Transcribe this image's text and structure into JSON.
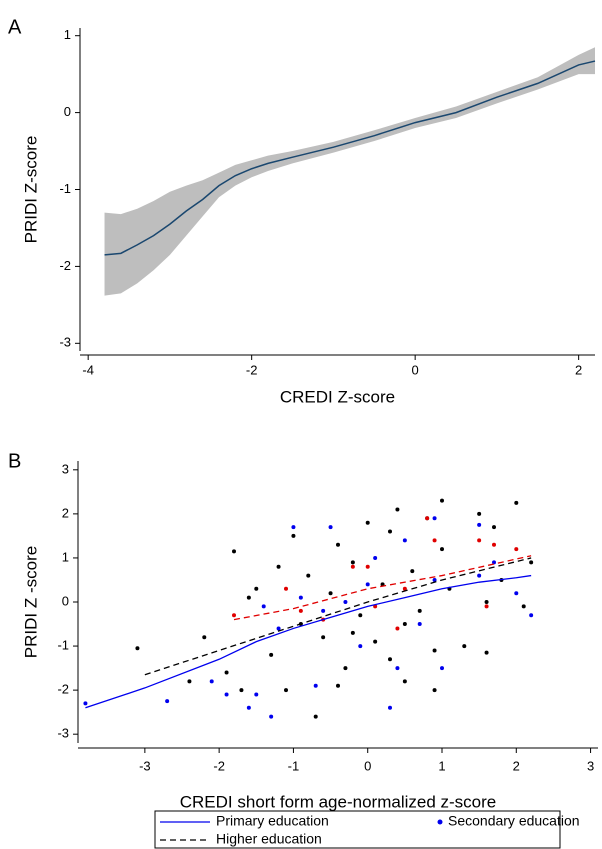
{
  "chart_data": [
    {
      "type": "line",
      "panel": "A",
      "xlabel": "CREDI Z-score",
      "ylabel": "PRIDI Z-score",
      "xlim": [
        -4.1,
        2.2
      ],
      "xticks": [
        -4,
        -2,
        0,
        2
      ],
      "ylim": [
        -3.1,
        1.1
      ],
      "yticks": [
        -3,
        -2,
        -1,
        0,
        1
      ],
      "band_color": "#bebebe",
      "x": [
        -3.8,
        -3.6,
        -3.4,
        -3.2,
        -3.0,
        -2.8,
        -2.6,
        -2.4,
        -2.2,
        -2.0,
        -1.8,
        -1.5,
        -1.0,
        -0.5,
        0,
        0.5,
        1.0,
        1.5,
        2.0,
        2.2
      ],
      "series": [
        {
          "color": "#1a476f",
          "values": [
            -1.85,
            -1.83,
            -1.72,
            -1.6,
            -1.45,
            -1.28,
            -1.13,
            -0.95,
            -0.82,
            -0.73,
            -0.66,
            -0.58,
            -0.45,
            -0.3,
            -0.13,
            0.0,
            0.2,
            0.38,
            0.62,
            0.67
          ],
          "lower": [
            -2.38,
            -2.35,
            -2.22,
            -2.05,
            -1.85,
            -1.6,
            -1.35,
            -1.1,
            -0.95,
            -0.84,
            -0.76,
            -0.66,
            -0.52,
            -0.37,
            -0.2,
            -0.07,
            0.12,
            0.3,
            0.5,
            0.5
          ],
          "upper": [
            -1.3,
            -1.32,
            -1.25,
            -1.15,
            -1.03,
            -0.95,
            -0.88,
            -0.78,
            -0.68,
            -0.62,
            -0.56,
            -0.5,
            -0.38,
            -0.23,
            -0.07,
            0.08,
            0.27,
            0.46,
            0.75,
            0.85
          ]
        }
      ]
    },
    {
      "type": "scatter",
      "panel": "B",
      "xlabel": "CREDI short form age-normalized z-score",
      "ylabel": "PRIDI Z -score",
      "xlim": [
        -3.9,
        3.1
      ],
      "xticks": [
        -3,
        -2,
        -1,
        0,
        1,
        2,
        3
      ],
      "ylim": [
        -3.2,
        3.2
      ],
      "yticks": [
        -3,
        -2,
        -1,
        0,
        1,
        2,
        3
      ],
      "series": [
        {
          "kind": "scatter",
          "color": "#000000",
          "x": [
            -3.1,
            -2.4,
            -2.2,
            -1.9,
            -1.8,
            -1.7,
            -1.5,
            -1.3,
            -1.2,
            -1.1,
            -1.0,
            -0.9,
            -0.8,
            -0.7,
            -0.6,
            -0.5,
            -0.4,
            -0.3,
            -0.2,
            -0.1,
            0,
            0.1,
            0.2,
            0.3,
            0.4,
            0.5,
            0.6,
            0.7,
            0.8,
            0.9,
            1.0,
            1.1,
            1.3,
            1.5,
            1.6,
            1.7,
            1.8,
            2.0,
            2.1,
            2.2,
            -0.4,
            0.3,
            0.9,
            -1.6,
            0.5,
            1.0,
            -0.2,
            1.6
          ],
          "values": [
            -1.05,
            -1.8,
            -0.8,
            -1.6,
            1.15,
            -2.0,
            0.3,
            -1.2,
            0.8,
            -2.0,
            1.5,
            -0.5,
            0.6,
            -2.6,
            -0.8,
            0.2,
            1.3,
            -1.5,
            0.9,
            -0.3,
            1.8,
            -0.9,
            0.4,
            1.6,
            2.1,
            -1.8,
            0.7,
            -0.2,
            1.9,
            -1.1,
            2.3,
            0.3,
            -1.0,
            2.0,
            -1.15,
            1.7,
            0.5,
            2.25,
            -0.1,
            0.9,
            -1.9,
            -1.3,
            -2.0,
            0.1,
            -0.5,
            1.2,
            -0.7,
            0.0
          ]
        },
        {
          "kind": "scatter",
          "name": "Secondary education",
          "color": "#0000ee",
          "x": [
            -3.8,
            -2.7,
            -2.1,
            -1.9,
            -1.6,
            -1.4,
            -1.2,
            -1.0,
            -0.9,
            -0.7,
            -0.5,
            -0.3,
            -0.1,
            0.1,
            0.3,
            0.5,
            0.7,
            0.9,
            1.0,
            1.5,
            1.7,
            2.0,
            2.2,
            -1.3,
            0.4,
            0.9,
            -0.6,
            1.5,
            0.0,
            -1.5
          ],
          "values": [
            -2.3,
            -2.25,
            -1.8,
            -2.1,
            -2.4,
            -0.1,
            -0.6,
            1.7,
            0.1,
            -1.9,
            1.7,
            0.0,
            -1.0,
            1.0,
            -2.4,
            1.4,
            -0.5,
            0.5,
            -1.5,
            1.75,
            0.9,
            0.2,
            -0.3,
            -2.6,
            -1.5,
            1.9,
            -0.2,
            0.6,
            0.4,
            -2.1
          ]
        },
        {
          "kind": "scatter",
          "color": "#e00000",
          "x": [
            -1.8,
            -1.1,
            -0.6,
            -0.2,
            0.0,
            0.1,
            0.4,
            0.5,
            0.8,
            1.5,
            1.6,
            1.7,
            2.0,
            0.9,
            -0.9
          ],
          "values": [
            -0.3,
            0.3,
            -0.4,
            0.8,
            0.8,
            -0.1,
            -0.6,
            0.3,
            1.9,
            1.4,
            -0.1,
            1.3,
            1.2,
            1.4,
            -0.2
          ]
        },
        {
          "kind": "line",
          "name": "Primary education",
          "color": "#0000ee",
          "dashed": false,
          "x": [
            -3.8,
            -3,
            -2,
            -1.5,
            -1,
            -0.5,
            0,
            0.5,
            1,
            1.5,
            2,
            2.2
          ],
          "values": [
            -2.4,
            -1.95,
            -1.3,
            -0.9,
            -0.6,
            -0.35,
            -0.1,
            0.1,
            0.3,
            0.45,
            0.55,
            0.6
          ]
        },
        {
          "kind": "line",
          "name": "Higher education",
          "color": "#000000",
          "dashed": true,
          "x": [
            -3,
            -2,
            -1,
            0,
            1,
            2.2
          ],
          "values": [
            -1.65,
            -1.1,
            -0.55,
            0.0,
            0.5,
            1.0
          ]
        },
        {
          "kind": "line",
          "color": "#e00000",
          "dashed": true,
          "x": [
            -1.8,
            -1,
            0,
            1,
            2.2
          ],
          "values": [
            -0.4,
            -0.15,
            0.3,
            0.6,
            1.05
          ]
        }
      ]
    }
  ]
}
